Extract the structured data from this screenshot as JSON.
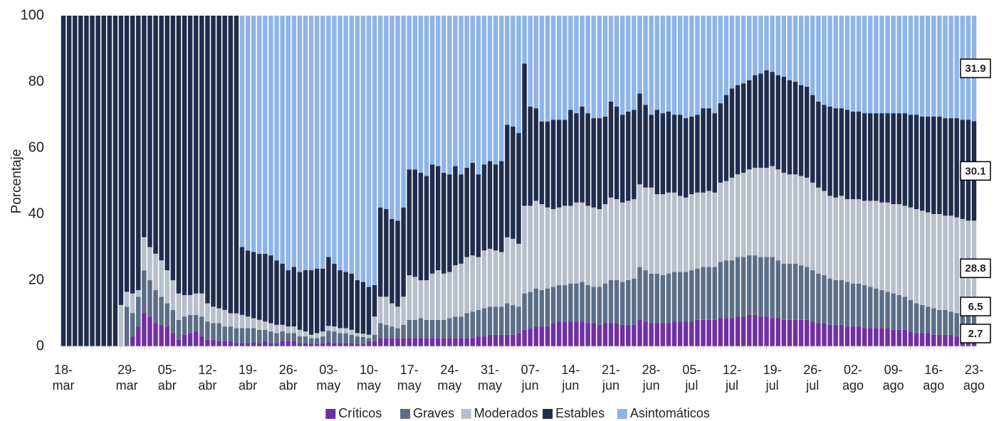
{
  "chart_data": {
    "type": "stacked-bar",
    "y_label": "Porcentaje",
    "ylim": [
      0,
      100
    ],
    "yticks": [
      0,
      20,
      40,
      60,
      80,
      100
    ],
    "grid": false,
    "legend": "bottom",
    "categories": [
      "18-mar",
      null,
      null,
      null,
      null,
      null,
      null,
      null,
      null,
      null,
      null,
      "29-mar",
      null,
      null,
      null,
      null,
      null,
      null,
      "05-abr",
      null,
      null,
      null,
      null,
      null,
      null,
      "12-abr",
      null,
      null,
      null,
      null,
      null,
      null,
      "19-abr",
      null,
      null,
      null,
      null,
      null,
      null,
      "26-abr",
      null,
      null,
      null,
      null,
      null,
      null,
      "03-may",
      null,
      null,
      null,
      null,
      null,
      null,
      "10-may",
      null,
      null,
      null,
      null,
      null,
      null,
      "17-may",
      null,
      null,
      null,
      null,
      null,
      null,
      "24-may",
      null,
      null,
      null,
      null,
      null,
      null,
      "31-may",
      null,
      null,
      null,
      null,
      null,
      null,
      "07-jun",
      null,
      null,
      null,
      null,
      null,
      null,
      "14-jun",
      null,
      null,
      null,
      null,
      null,
      null,
      "21-jun",
      null,
      null,
      null,
      null,
      null,
      null,
      "28-jun",
      null,
      null,
      null,
      null,
      null,
      null,
      "05-jul",
      null,
      null,
      null,
      null,
      null,
      null,
      "12-jul",
      null,
      null,
      null,
      null,
      null,
      null,
      "19-jul",
      null,
      null,
      null,
      null,
      null,
      null,
      "26-jul",
      null,
      null,
      null,
      null,
      null,
      null,
      "02-ago",
      null,
      null,
      null,
      null,
      null,
      null,
      "09-ago",
      null,
      null,
      null,
      null,
      null,
      null,
      "16-ago",
      null,
      null,
      null,
      null,
      null,
      null,
      "23-ago"
    ],
    "series": [
      {
        "name": "Críticos",
        "color": "#7030a0",
        "values": [
          0,
          0,
          0,
          0,
          0,
          0,
          0,
          0,
          0,
          0,
          0,
          0,
          3,
          6,
          10,
          9,
          7,
          6.5,
          6,
          4,
          2,
          3.5,
          4,
          4.5,
          3,
          2,
          2,
          1.5,
          1.5,
          1.5,
          1,
          1,
          1,
          1.2,
          1,
          1.5,
          1,
          1,
          1.5,
          1.5,
          1.5,
          1,
          1,
          0.8,
          0.8,
          1,
          1.2,
          1,
          1,
          1,
          1,
          0.8,
          0.8,
          1.5,
          1.5,
          2.5,
          2.5,
          2.5,
          2.5,
          2.5,
          2.5,
          2.5,
          2.5,
          2.5,
          2.5,
          2.5,
          2.5,
          2.5,
          2.5,
          2.5,
          2.5,
          2.5,
          3,
          3,
          3.5,
          3.5,
          3.5,
          3.5,
          3.5,
          4,
          5,
          5.5,
          6,
          6,
          6,
          7,
          7.5,
          7.5,
          7.5,
          7.5,
          7.5,
          7,
          7,
          6.5,
          7,
          7,
          7,
          6.5,
          6.5,
          6.5,
          8,
          7.5,
          7,
          7,
          7,
          7,
          7.5,
          7.5,
          7.5,
          7.5,
          8,
          8,
          8,
          8,
          8.5,
          8.5,
          8.5,
          9,
          9,
          9.5,
          9.5,
          9,
          9,
          8.5,
          8.5,
          8,
          8,
          8,
          8,
          8,
          7.5,
          7,
          7,
          6.5,
          6.5,
          6.5,
          6,
          6,
          6,
          5.5,
          5.5,
          5.5,
          5.5,
          5.5,
          5,
          5,
          5,
          4.5,
          4,
          4,
          4,
          3.5,
          3.5,
          3.5,
          3.5,
          3,
          3,
          3,
          2.7
        ]
      },
      {
        "name": "Graves",
        "color": "#5b6e86",
        "values": [
          0,
          0,
          0,
          0,
          0,
          0,
          0,
          0,
          0,
          0,
          0,
          12,
          7,
          9,
          13,
          11,
          10,
          8.5,
          7,
          7,
          6,
          5.5,
          5.5,
          5,
          6,
          5.5,
          5,
          5.5,
          4.5,
          4.5,
          4.5,
          4.5,
          4.5,
          4.3,
          4,
          3.5,
          3.5,
          3,
          3,
          2.5,
          2.5,
          2,
          2,
          1.7,
          1.7,
          2,
          3.5,
          3.5,
          3,
          3,
          2.5,
          2.2,
          2,
          1,
          2,
          4.5,
          4,
          3.5,
          3,
          4,
          5.5,
          5.5,
          6,
          5.5,
          5.5,
          5.5,
          5.5,
          6,
          6.5,
          6.5,
          7.5,
          8,
          8,
          8.5,
          8.5,
          8.5,
          8.5,
          9.5,
          9,
          8,
          11,
          11,
          11.5,
          11,
          11.5,
          11,
          11,
          11,
          11.5,
          11.5,
          12,
          11.5,
          11,
          11.5,
          12,
          13,
          13,
          13,
          13.5,
          14,
          16,
          15.5,
          15,
          15,
          14.5,
          15,
          15,
          15,
          15,
          15.5,
          15.5,
          16,
          16,
          16,
          17,
          17.5,
          17.5,
          18,
          18,
          18,
          18,
          18,
          18,
          18.5,
          17.5,
          17,
          17,
          17,
          16.5,
          16,
          15.5,
          15,
          14.5,
          14,
          13.5,
          13.5,
          13.5,
          13,
          13,
          13,
          12.5,
          12,
          11.5,
          11,
          11,
          10.5,
          10,
          9.5,
          9,
          8.5,
          8,
          8,
          7.5,
          7.5,
          7,
          7,
          6.5,
          6.5,
          6.5
        ]
      },
      {
        "name": "Moderados",
        "color": "#b7bfcc",
        "values": [
          0,
          0,
          0,
          0,
          0,
          0,
          0,
          0,
          0,
          0,
          12.5,
          4.5,
          6,
          2,
          10,
          10,
          11,
          11,
          10,
          9,
          8,
          6.5,
          6,
          6.5,
          7,
          5.5,
          5,
          4.5,
          5,
          4,
          4.5,
          4,
          3.5,
          3,
          3,
          2.5,
          2.5,
          2.5,
          2,
          2,
          2,
          2,
          1.5,
          1,
          1.5,
          1.5,
          1.5,
          1.5,
          1.5,
          1.5,
          1.5,
          1,
          1,
          1,
          5.5,
          8,
          8.5,
          7,
          6.5,
          8.5,
          13.5,
          13,
          11.5,
          12,
          14,
          15,
          14,
          14,
          15.5,
          16,
          17,
          17,
          16,
          17.5,
          17.5,
          17,
          16.5,
          20,
          20,
          19,
          26.5,
          26,
          26.5,
          26,
          24.5,
          23.5,
          23.5,
          24,
          23.5,
          24.5,
          24,
          24,
          24,
          23.5,
          24,
          25,
          24.5,
          24,
          24,
          24,
          25,
          25,
          26,
          24,
          24.5,
          24.5,
          24,
          23,
          22.5,
          23,
          23,
          22.5,
          23,
          22.5,
          24,
          24,
          25,
          25,
          25.5,
          26,
          26.5,
          27,
          27,
          27.5,
          27.5,
          27.5,
          27,
          27,
          27,
          27,
          26.5,
          26,
          25.5,
          25,
          25,
          25.5,
          25,
          25.5,
          25.5,
          25.5,
          26,
          26.5,
          26.5,
          27,
          27,
          27.5,
          27.5,
          28,
          28.5,
          28.5,
          28.5,
          28.5,
          29,
          28.5,
          29,
          29,
          29,
          28.5,
          28.8
        ]
      },
      {
        "name": "Estables",
        "color": "#1f2c4c",
        "values": [
          100,
          100,
          100,
          100,
          100,
          100,
          100,
          100,
          100,
          100,
          87.5,
          83.5,
          84,
          83,
          67,
          70,
          72,
          74,
          77,
          80,
          84,
          84.5,
          84.5,
          84,
          84,
          87,
          88,
          88.5,
          89,
          90,
          90,
          20.5,
          20,
          20,
          20,
          20.5,
          20.5,
          19.5,
          18.5,
          17,
          18,
          17.5,
          18.5,
          19.5,
          19.5,
          19,
          20.8,
          19,
          17.5,
          17,
          17,
          16,
          15.7,
          14.5,
          9.5,
          27,
          26.5,
          25.5,
          26,
          27,
          32,
          32.5,
          32.5,
          31.5,
          33,
          31.5,
          30.5,
          29.5,
          30,
          27,
          27,
          28,
          25,
          26,
          26.5,
          26,
          27.5,
          34,
          34,
          33.5,
          43,
          30,
          28,
          25,
          26,
          27,
          26.5,
          26,
          29,
          27,
          29,
          28,
          27,
          27.5,
          26.5,
          29,
          28,
          26.5,
          27,
          27,
          27.5,
          25,
          22,
          25.5,
          24.5,
          24.5,
          23.5,
          24.5,
          24,
          23.5,
          23.5,
          25.5,
          25,
          24,
          24,
          26,
          27,
          27,
          27,
          27,
          28,
          28.5,
          29.5,
          28.5,
          28.5,
          29,
          28.5,
          28,
          27.5,
          27.5,
          26.5,
          26,
          26,
          27,
          27,
          26.5,
          27,
          26.5,
          26.5,
          26.5,
          26.5,
          26.5,
          27,
          27,
          27.5,
          27.5,
          28,
          28,
          28.5,
          28.5,
          29,
          29.5,
          29.5,
          29.5,
          29.5,
          30,
          30,
          30.5,
          30.1
        ]
      },
      {
        "name": "Asintomáticos",
        "color": "#8eb4e8",
        "values": [
          0,
          0,
          0,
          0,
          0,
          0,
          0,
          0,
          0,
          0,
          0,
          0,
          0,
          0,
          0,
          0,
          0,
          0,
          0,
          0,
          0,
          0,
          0,
          0,
          0,
          0,
          0,
          0,
          0,
          0,
          0,
          70,
          71,
          71.5,
          72,
          72,
          72.5,
          74,
          75,
          77,
          76,
          77.5,
          77,
          77,
          76.5,
          76.5,
          73,
          75,
          77,
          77.5,
          78,
          80,
          80.5,
          82,
          81.5,
          58,
          58.5,
          61.5,
          62,
          58,
          46.5,
          46.5,
          47.5,
          48.5,
          45,
          45.5,
          47.5,
          48,
          45.5,
          48,
          46,
          44.5,
          48,
          45,
          44,
          45,
          44,
          33,
          33.5,
          35.5,
          14.5,
          27.5,
          28,
          32,
          32,
          31.5,
          31.5,
          31.5,
          28.5,
          29.5,
          27.5,
          29.5,
          31,
          31,
          30.5,
          26,
          27.5,
          30,
          29,
          28.5,
          23.5,
          27,
          30,
          28.5,
          29.5,
          29,
          30,
          30,
          31,
          30.5,
          30,
          28,
          28,
          29.5,
          26.5,
          24,
          22,
          21,
          20.5,
          19.5,
          18,
          17.5,
          16.5,
          17,
          18,
          18.5,
          19.5,
          20,
          21,
          21.5,
          24,
          26,
          27,
          27.5,
          28,
          28,
          28.5,
          29,
          29,
          29.5,
          29.5,
          29.5,
          29.5,
          29.5,
          29.5,
          29.5,
          29.5,
          30,
          30,
          30.5,
          30.5,
          30.5,
          30.5,
          31,
          31,
          31,
          31.5,
          31.5,
          31.9
        ]
      }
    ]
  }
}
